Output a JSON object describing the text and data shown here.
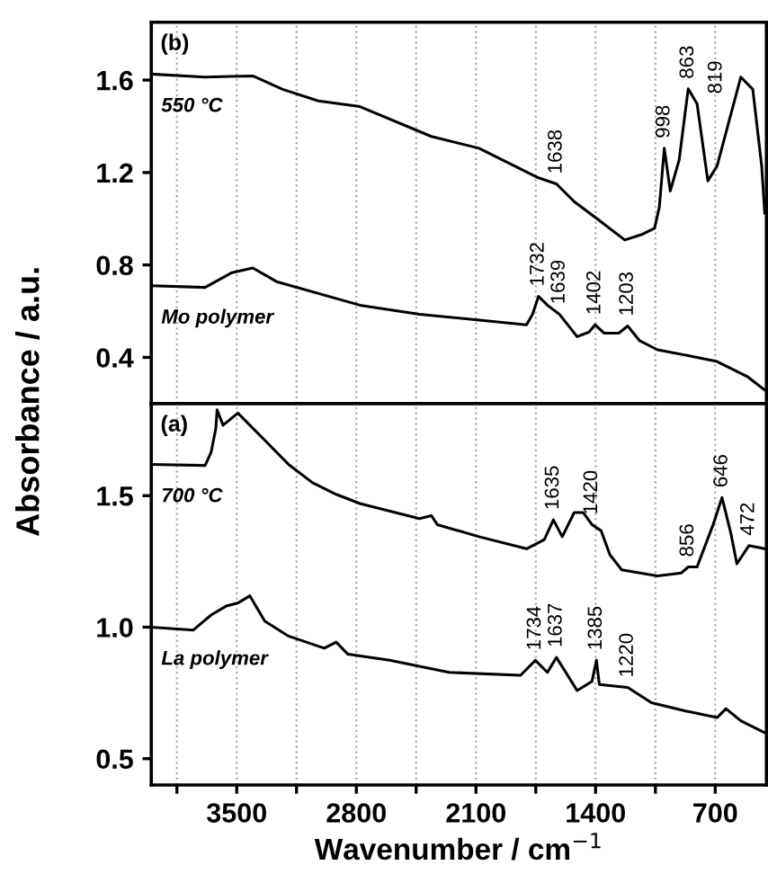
{
  "chart_data": [
    {
      "type": "line",
      "title": "(b)",
      "ylabel": "Absorbance / a.u.",
      "xlim": [
        4000,
        400
      ],
      "ylim": [
        0.2,
        1.85
      ],
      "xticks": [
        {
          "value": 3850,
          "label": null
        },
        3500,
        {
          "value": 3150,
          "label": null
        },
        2800,
        {
          "value": 2450,
          "label": null
        },
        2100,
        {
          "value": 1750,
          "label": null
        },
        1400,
        {
          "value": 1050,
          "label": null
        },
        700
      ],
      "yticks": [
        0.4,
        0.8,
        1.2,
        1.6
      ],
      "tick_labels": "y",
      "grid": "x",
      "legend": false,
      "series": [
        {
          "name": "550 °C",
          "color": "#000000",
          "x": [
            4000,
            3685,
            3406,
            3231,
            3022,
            2779,
            2361,
            2082,
            1734,
            1629,
            1525,
            1386,
            1229,
            1125,
            1055,
            1027,
            998,
            963,
            911,
            858,
            806,
            743,
            689,
            550,
            480,
            428,
            410
          ],
          "values": [
            1.626,
            1.613,
            1.618,
            1.56,
            1.51,
            1.485,
            1.356,
            1.305,
            1.177,
            1.151,
            1.074,
            0.997,
            0.908,
            0.933,
            0.959,
            1.049,
            1.305,
            1.12,
            1.254,
            1.562,
            1.497,
            1.164,
            1.228,
            1.613,
            1.56,
            1.228,
            1.023
          ]
        },
        {
          "name": "Mo polymer",
          "color": "#000000",
          "x": [
            4000,
            3685,
            3528,
            3406,
            3267,
            2779,
            2431,
            1804,
            1769,
            1734,
            1682,
            1612,
            1508,
            1438,
            1403,
            1351,
            1264,
            1212,
            1142,
            1038,
            858,
            689,
            514,
            410
          ],
          "values": [
            0.71,
            0.703,
            0.767,
            0.787,
            0.728,
            0.626,
            0.587,
            0.541,
            0.587,
            0.664,
            0.626,
            0.587,
            0.49,
            0.51,
            0.541,
            0.505,
            0.505,
            0.536,
            0.472,
            0.433,
            0.408,
            0.382,
            0.318,
            0.259
          ]
        }
      ],
      "annotations": [
        {
          "text": "1638",
          "x": 1629,
          "y": 1.151
        },
        {
          "text": "998",
          "x": 998,
          "y": 1.305
        },
        {
          "text": "863",
          "x": 858,
          "y": 1.562
        },
        {
          "text": "819",
          "x": 806,
          "y": 1.497
        },
        {
          "text": "1732",
          "x": 1734,
          "y": 0.664
        },
        {
          "text": "1639",
          "x": 1612,
          "y": 0.587
        },
        {
          "text": "1402",
          "x": 1403,
          "y": 0.541
        },
        {
          "text": "1203",
          "x": 1212,
          "y": 0.536
        }
      ]
    },
    {
      "type": "line",
      "title": "(a)",
      "xlabel": "Wavenumber / cm$^{−1}$",
      "xlim": [
        4000,
        400
      ],
      "ylim": [
        0.4,
        1.85
      ],
      "xticks": [
        {
          "value": 3850,
          "label": null
        },
        3500,
        {
          "value": 3150,
          "label": null
        },
        2800,
        {
          "value": 2450,
          "label": null
        },
        2100,
        {
          "value": 1750,
          "label": null
        },
        1400,
        {
          "value": 1050,
          "label": null
        },
        700
      ],
      "yticks": [
        0.5,
        {
          "value": 1.0,
          "label": "1.0"
        },
        1.5
      ],
      "grid": "x",
      "legend": false,
      "series": [
        {
          "name": "700 °C",
          "color": "#000000",
          "x": [
            4000,
            3685,
            3650,
            3622,
            3615,
            3580,
            3493,
            3406,
            3336,
            3197,
            3058,
            2918,
            2779,
            2431,
            2361,
            2326,
            2082,
            1804,
            1700,
            1647,
            1595,
            1525,
            1473,
            1421,
            1368,
            1316,
            1247,
            1038,
            898,
            858,
            806,
            712,
            660,
            608,
            573,
            503,
            410
          ],
          "values": [
            1.619,
            1.615,
            1.665,
            1.757,
            1.826,
            1.768,
            1.814,
            1.757,
            1.711,
            1.619,
            1.55,
            1.505,
            1.47,
            1.413,
            1.424,
            1.39,
            1.344,
            1.298,
            1.333,
            1.408,
            1.344,
            1.436,
            1.436,
            1.39,
            1.367,
            1.275,
            1.218,
            1.195,
            1.206,
            1.229,
            1.229,
            1.39,
            1.493,
            1.356,
            1.241,
            1.31,
            1.298
          ]
        },
        {
          "name": "La polymer",
          "color": "#000000",
          "x": [
            4000,
            3754,
            3650,
            3563,
            3493,
            3423,
            3336,
            3197,
            2988,
            2918,
            2849,
            2605,
            2257,
            1839,
            1752,
            1682,
            1629,
            1508,
            1421,
            1395,
            1378,
            1212,
            1073,
            858,
            689,
            637,
            550,
            410
          ],
          "values": [
            1.0,
            0.989,
            1.046,
            1.08,
            1.092,
            1.119,
            1.023,
            0.966,
            0.92,
            0.943,
            0.897,
            0.874,
            0.828,
            0.817,
            0.874,
            0.828,
            0.885,
            0.759,
            0.794,
            0.874,
            0.782,
            0.771,
            0.713,
            0.679,
            0.656,
            0.69,
            0.644,
            0.599
          ]
        }
      ],
      "annotations": [
        {
          "text": "1635",
          "x": 1647,
          "y": 1.408
        },
        {
          "text": "1420",
          "x": 1421,
          "y": 1.39
        },
        {
          "text": "856",
          "x": 858,
          "y": 1.229
        },
        {
          "text": "646",
          "x": 660,
          "y": 1.493
        },
        {
          "text": "472",
          "x": 503,
          "y": 1.31
        },
        {
          "text": "1734",
          "x": 1752,
          "y": 0.874
        },
        {
          "text": "1637",
          "x": 1629,
          "y": 0.885
        },
        {
          "text": "1385",
          "x": 1395,
          "y": 0.874
        },
        {
          "text": "1220",
          "x": 1212,
          "y": 0.771
        }
      ]
    }
  ]
}
